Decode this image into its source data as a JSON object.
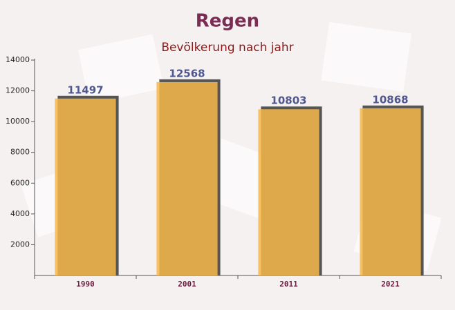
{
  "chart_data": {
    "type": "bar",
    "title": "Regen",
    "subtitle": "Bevölkerung nach jahr",
    "categories": [
      "1990",
      "2001",
      "2011",
      "2021"
    ],
    "values": [
      11497,
      12568,
      10803,
      10868
    ],
    "color": "#f7b84a",
    "ylim": [
      0,
      14000
    ],
    "yticks": [
      2000,
      4000,
      6000,
      8000,
      10000,
      12000,
      14000
    ]
  }
}
